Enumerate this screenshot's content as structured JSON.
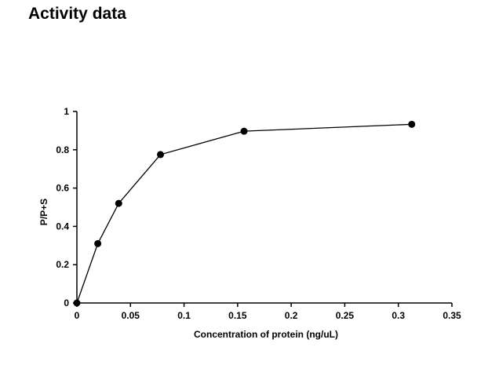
{
  "heading": "Activity data",
  "chart_data": {
    "type": "line",
    "title": "",
    "xlabel": "Concentration of protein (ng/uL)",
    "ylabel": "P/P+S",
    "xlim": [
      0,
      0.35
    ],
    "ylim": [
      0,
      1
    ],
    "xticks": [
      "0",
      "0.05",
      "0.1",
      "0.15",
      "0.2",
      "0.25",
      "0.3",
      "0.35"
    ],
    "xtick_values": [
      0,
      0.05,
      0.1,
      0.15,
      0.2,
      0.25,
      0.3,
      0.35
    ],
    "yticks": [
      "0",
      "0.2",
      "0.4",
      "0.6",
      "0.8",
      "1"
    ],
    "ytick_values": [
      0,
      0.2,
      0.4,
      0.6,
      0.8,
      1
    ],
    "grid": false,
    "legend": "none",
    "series": [
      {
        "x": [
          0,
          0.0195,
          0.039,
          0.078,
          0.156,
          0.3125
        ],
        "y": [
          0,
          0.31,
          0.52,
          0.775,
          0.897,
          0.933
        ],
        "color": "#000000",
        "marker": "circle"
      }
    ]
  }
}
